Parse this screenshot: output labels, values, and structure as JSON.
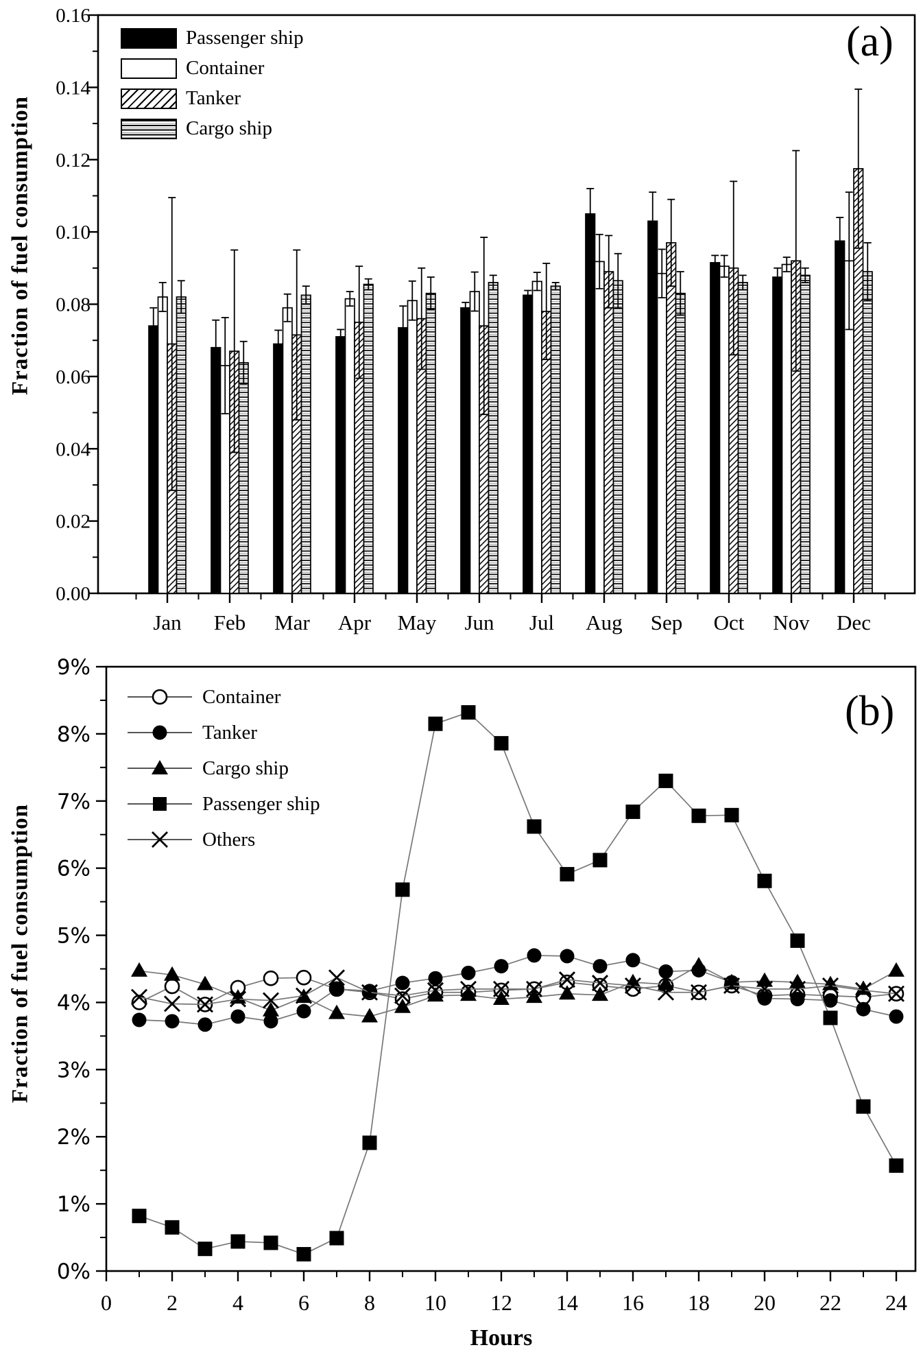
{
  "figure": {
    "background": "#ffffff",
    "axis_color": "#000000",
    "connector_line_color": "#777777"
  },
  "panel_a": {
    "tag": "(a)",
    "ylabel": "Fraction of fuel consumption",
    "legend": [
      "Passenger ship",
      "Container",
      "Tanker",
      "Cargo ship"
    ]
  },
  "panel_b": {
    "tag": "(b)",
    "ylabel": "Fraction of fuel consumption",
    "xlabel": "Hours",
    "legend": [
      "Container",
      "Tanker",
      "Cargo ship",
      "Passenger ship",
      "Others"
    ]
  },
  "chart_data": [
    {
      "type": "bar",
      "title": "",
      "ylabel": "Fraction of fuel consumption",
      "xlabel": "",
      "categories": [
        "Jan",
        "Feb",
        "Mar",
        "Apr",
        "May",
        "Jun",
        "Jul",
        "Aug",
        "Sep",
        "Oct",
        "Nov",
        "Dec"
      ],
      "ylim": [
        0,
        0.16
      ],
      "ytick_step": 0.02,
      "ytick_labels": [
        "0.00",
        "0.02",
        "0.04",
        "0.06",
        "0.08",
        "0.10",
        "0.12",
        "0.14",
        "0.16"
      ],
      "grid": false,
      "legend_position": "top-left-inside",
      "error_bars": true,
      "bar_styles": [
        "solid-black",
        "open-white",
        "diagonal-hatch",
        "horizontal-lines"
      ],
      "series": [
        {
          "name": "Passenger ship",
          "values": [
            0.074,
            0.068,
            0.069,
            0.071,
            0.0735,
            0.079,
            0.0825,
            0.105,
            0.103,
            0.0915,
            0.0875,
            0.0975
          ],
          "errors": [
            0.005,
            0.0076,
            0.0038,
            0.002,
            0.006,
            0.0015,
            0.0013,
            0.007,
            0.008,
            0.002,
            0.0025,
            0.0065
          ]
        },
        {
          "name": "Container",
          "values": [
            0.082,
            0.063,
            0.079,
            0.0815,
            0.081,
            0.0835,
            0.0863,
            0.0918,
            0.0885,
            0.0905,
            0.091,
            0.092
          ],
          "errors": [
            0.004,
            0.0133,
            0.0038,
            0.002,
            0.0054,
            0.0054,
            0.0025,
            0.0075,
            0.0067,
            0.003,
            0.002,
            0.019
          ]
        },
        {
          "name": "Tanker",
          "values": [
            0.069,
            0.067,
            0.0715,
            0.075,
            0.076,
            0.074,
            0.078,
            0.089,
            0.097,
            0.09,
            0.092,
            0.1175
          ],
          "errors": [
            0.0405,
            0.028,
            0.0235,
            0.0155,
            0.014,
            0.0245,
            0.0133,
            0.01,
            0.012,
            0.024,
            0.0305,
            0.022
          ]
        },
        {
          "name": "Cargo ship",
          "values": [
            0.082,
            0.0638,
            0.0825,
            0.0855,
            0.083,
            0.086,
            0.085,
            0.0865,
            0.083,
            0.086,
            0.088,
            0.089
          ],
          "errors": [
            0.0045,
            0.0059,
            0.0025,
            0.0015,
            0.0045,
            0.002,
            0.001,
            0.0075,
            0.006,
            0.002,
            0.002,
            0.008
          ]
        }
      ]
    },
    {
      "type": "line",
      "title": "",
      "ylabel": "Fraction of fuel consumption",
      "xlabel": "Hours",
      "x": [
        1,
        2,
        3,
        4,
        5,
        6,
        7,
        8,
        9,
        10,
        11,
        12,
        13,
        14,
        15,
        16,
        17,
        18,
        19,
        20,
        21,
        22,
        23,
        24
      ],
      "xlim": [
        0,
        24.6
      ],
      "ylim": [
        0,
        9
      ],
      "ytick_labels": [
        "0%",
        "1%",
        "2%",
        "3%",
        "4%",
        "5%",
        "6%",
        "7%",
        "8%",
        "9%"
      ],
      "xtick_labels": [
        "0",
        "2",
        "4",
        "6",
        "8",
        "10",
        "12",
        "14",
        "16",
        "18",
        "20",
        "22",
        "24"
      ],
      "grid": false,
      "legend_position": "top-left-inside",
      "series": [
        {
          "name": "Container",
          "marker": "open-circle",
          "values": [
            4.0,
            4.24,
            3.97,
            4.22,
            4.36,
            4.37,
            4.2,
            4.15,
            4.05,
            4.15,
            4.15,
            4.18,
            4.2,
            4.3,
            4.25,
            4.2,
            4.25,
            4.15,
            4.25,
            4.1,
            4.12,
            4.1,
            4.08,
            4.13
          ]
        },
        {
          "name": "Tanker",
          "marker": "filled-circle",
          "values": [
            3.74,
            3.72,
            3.67,
            3.79,
            3.72,
            3.87,
            4.2,
            4.17,
            4.29,
            4.36,
            4.44,
            4.54,
            4.7,
            4.69,
            4.54,
            4.63,
            4.46,
            4.48,
            4.3,
            4.06,
            4.05,
            4.03,
            3.9,
            3.79
          ]
        },
        {
          "name": "Cargo ship",
          "marker": "filled-triangle",
          "values": [
            4.47,
            4.41,
            4.27,
            4.07,
            3.88,
            4.08,
            3.84,
            3.79,
            3.93,
            4.1,
            4.11,
            4.05,
            4.08,
            4.13,
            4.11,
            4.3,
            4.27,
            4.55,
            4.3,
            4.32,
            4.3,
            4.27,
            4.2,
            4.47
          ]
        },
        {
          "name": "Passenger ship",
          "marker": "filled-square",
          "values": [
            0.82,
            0.65,
            0.33,
            0.44,
            0.42,
            0.25,
            0.49,
            1.91,
            5.68,
            8.15,
            8.32,
            7.86,
            6.62,
            5.91,
            6.12,
            6.84,
            7.3,
            6.78,
            6.79,
            5.81,
            4.92,
            3.77,
            2.45,
            1.57
          ]
        },
        {
          "name": "Others",
          "marker": "x-cross",
          "values": [
            4.08,
            3.98,
            3.97,
            4.05,
            4.03,
            4.1,
            4.37,
            4.15,
            4.1,
            4.18,
            4.2,
            4.2,
            4.2,
            4.34,
            4.29,
            4.25,
            4.15,
            4.15,
            4.25,
            4.2,
            4.2,
            4.25,
            4.18,
            4.13
          ]
        }
      ]
    }
  ]
}
